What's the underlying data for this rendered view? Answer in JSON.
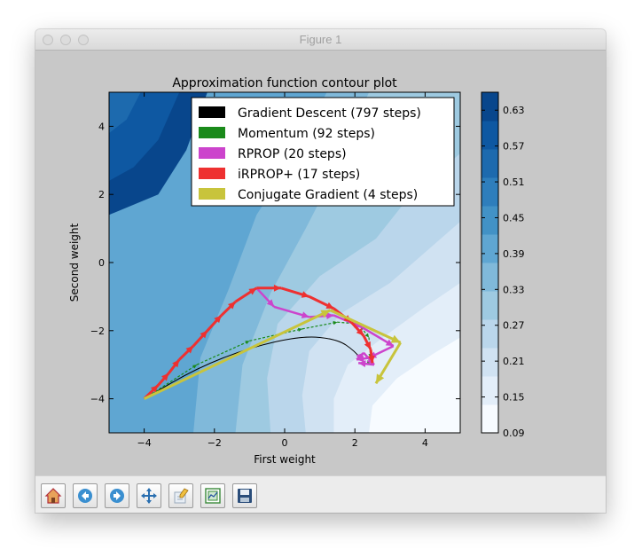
{
  "window": {
    "title": "Figure 1"
  },
  "toolbar": {
    "buttons": [
      "home",
      "back",
      "forward",
      "pan",
      "edit",
      "configure",
      "save"
    ]
  },
  "chart_data": {
    "type": "contour",
    "title": "Approximation function contour plot",
    "xlabel": "First weight",
    "ylabel": "Second weight",
    "xlim": [
      -5,
      5
    ],
    "ylim": [
      -5,
      5
    ],
    "xticks": [
      "−4",
      "−2",
      "0",
      "2",
      "4"
    ],
    "yticks": [
      "4",
      "2",
      "0",
      "−2",
      "−4"
    ],
    "colorbar": {
      "range": [
        0.09,
        0.66
      ],
      "ticks": [
        "0.63",
        "0.57",
        "0.51",
        "0.45",
        "0.39",
        "0.33",
        "0.27",
        "0.21",
        "0.15",
        "0.09"
      ],
      "colors": [
        "#f7fbff",
        "#e3eef9",
        "#d0e2f2",
        "#bad6eb",
        "#9ecae1",
        "#80b9da",
        "#5fa6d2",
        "#4292c6",
        "#2e7ebc",
        "#1d6aae",
        "#0e58a2",
        "#08468c"
      ]
    },
    "legend": {
      "placement": "top-right",
      "entries": [
        {
          "label": "Gradient Descent (797 steps)",
          "color": "#000000"
        },
        {
          "label": "Momentum (92 steps)",
          "color": "#1a8a1a"
        },
        {
          "label": "RPROP (20 steps)",
          "color": "#cc44cc"
        },
        {
          "label": "iRPROP+ (17 steps)",
          "color": "#ee3030"
        },
        {
          "label": "Conjugate Gradient (4 steps)",
          "color": "#c8c43c"
        }
      ]
    },
    "series": [
      {
        "name": "Gradient Descent (797 steps)",
        "color": "#000000",
        "points": [
          [
            -4,
            -4
          ],
          [
            -2.5,
            -3.1
          ],
          [
            -1,
            -2.5
          ],
          [
            0.5,
            -2.15
          ],
          [
            1.5,
            -2.25
          ],
          [
            2,
            -2.6
          ],
          [
            2.3,
            -3
          ]
        ]
      },
      {
        "name": "Momentum (92 steps)",
        "color": "#1a8a1a",
        "points": [
          [
            -4,
            -4
          ],
          [
            -2.5,
            -3
          ],
          [
            -1,
            -2.3
          ],
          [
            0.5,
            -1.95
          ],
          [
            1.5,
            -1.75
          ],
          [
            2.1,
            -1.8
          ],
          [
            2.4,
            -2.2
          ],
          [
            2.45,
            -2.8
          ],
          [
            2.35,
            -3
          ]
        ]
      },
      {
        "name": "RPROP (20 steps)",
        "color": "#cc44cc",
        "points": [
          [
            -0.8,
            -0.75
          ],
          [
            -0.3,
            -1.3
          ],
          [
            0.7,
            -1.6
          ],
          [
            1.4,
            -1.55
          ],
          [
            2.2,
            -1.9
          ],
          [
            3.1,
            -2.45
          ],
          [
            2.4,
            -2.8
          ],
          [
            2.05,
            -2.85
          ],
          [
            2.25,
            -2.65
          ],
          [
            2.55,
            -3.0
          ],
          [
            2.1,
            -2.95
          ]
        ]
      },
      {
        "name": "iRPROP+ (17 steps)",
        "color": "#ee3030",
        "points": [
          [
            -4,
            -4
          ],
          [
            -3.6,
            -3.6
          ],
          [
            -3.3,
            -3.25
          ],
          [
            -3.0,
            -2.85
          ],
          [
            -2.6,
            -2.45
          ],
          [
            -2.2,
            -2.0
          ],
          [
            -1.8,
            -1.55
          ],
          [
            -1.4,
            -1.15
          ],
          [
            -0.8,
            -0.75
          ],
          [
            -0.1,
            -0.75
          ],
          [
            0.7,
            -1.0
          ],
          [
            1.4,
            -1.35
          ],
          [
            1.9,
            -1.75
          ],
          [
            2.25,
            -2.15
          ],
          [
            2.45,
            -2.55
          ],
          [
            2.5,
            -2.95
          ]
        ]
      },
      {
        "name": "Conjugate Gradient (4 steps)",
        "color": "#c8c43c",
        "points": [
          [
            -4,
            -4
          ],
          [
            1.3,
            -1.4
          ],
          [
            3.3,
            -2.35
          ],
          [
            2.6,
            -3.55
          ]
        ]
      }
    ]
  }
}
